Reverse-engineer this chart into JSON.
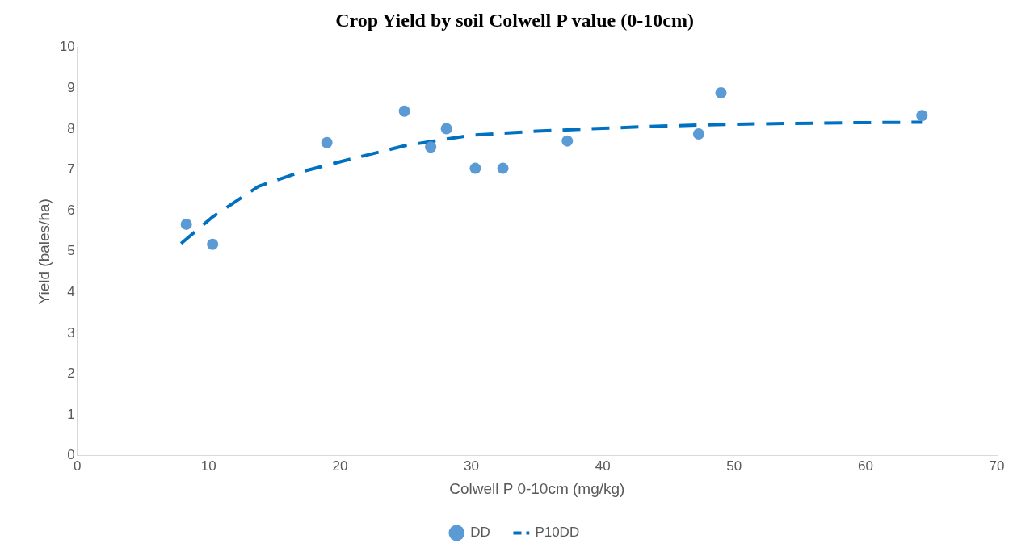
{
  "chart_data": {
    "type": "scatter",
    "title": "Crop Yield by soil Colwell P value (0-10cm)",
    "xlabel": "Colwell P 0-10cm (mg/kg)",
    "ylabel": "Yield (bales/ha)",
    "xlim": [
      0,
      70
    ],
    "xticks": [
      0,
      10,
      20,
      30,
      40,
      50,
      60,
      70
    ],
    "ylim": [
      0,
      10
    ],
    "yticks": [
      0,
      1,
      2,
      3,
      4,
      5,
      6,
      7,
      8,
      9,
      10
    ],
    "grid": false,
    "legend": "bottom",
    "series": [
      {
        "name": "DD",
        "type": "scatter",
        "color": "#5b9bd5",
        "marker": "circle",
        "x": [
          8.3,
          10.3,
          19.0,
          24.9,
          26.9,
          28.1,
          30.3,
          32.4,
          37.3,
          47.3,
          49.0,
          64.3
        ],
        "values": [
          5.67,
          5.18,
          7.67,
          8.44,
          7.56,
          8.01,
          7.04,
          7.04,
          7.71,
          7.88,
          8.89,
          8.33
        ]
      },
      {
        "name": "P10DD",
        "type": "line",
        "color": "#0070c0",
        "marker": "none",
        "line_style": "dashed",
        "x": [
          7.9,
          10.3,
          13.8,
          17,
          20,
          25,
          30,
          35,
          40,
          45,
          50,
          57,
          64.3
        ],
        "values": [
          5.2,
          5.85,
          6.6,
          6.95,
          7.2,
          7.6,
          7.85,
          7.95,
          8.02,
          8.08,
          8.12,
          8.15,
          8.17
        ]
      }
    ]
  }
}
